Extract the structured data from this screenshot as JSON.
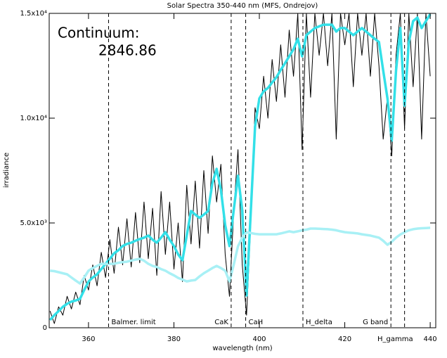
{
  "chart_data": {
    "type": "line",
    "title": "Solar Spectra 350-440 nm (MFS, Ondrejov)",
    "xlabel": "wavelength (nm)",
    "ylabel": "irradiance",
    "annotations": [
      "Continuum:",
      "2846.86"
    ],
    "xlim": [
      350.8,
      441.3
    ],
    "ylim": [
      0,
      15000
    ],
    "xticks": [
      360,
      380,
      400,
      420,
      440
    ],
    "yticks": [
      0,
      {
        "value": 5000,
        "label": "5.0x10³"
      },
      {
        "value": 10000,
        "label": "1.0x10⁴"
      },
      {
        "value": 15000,
        "label": "1.5x10⁴"
      }
    ],
    "markers": [
      {
        "x": 364.7,
        "label": "Balmer. limit"
      },
      {
        "x": 393.4,
        "label": "CaK"
      },
      {
        "x": 396.8,
        "label": "CaH"
      },
      {
        "x": 410.2,
        "label": "H_delta"
      },
      {
        "x": 430.8,
        "label": "G band"
      },
      {
        "x": 434.0,
        "label": "H_gamma"
      }
    ],
    "x": [
      351,
      352,
      353,
      354,
      355,
      356,
      357,
      358,
      359,
      360,
      361,
      362,
      363,
      364,
      365,
      366,
      367,
      368,
      369,
      370,
      371,
      372,
      373,
      374,
      375,
      376,
      377,
      378,
      379,
      380,
      381,
      382,
      383,
      384,
      385,
      386,
      387,
      388,
      389,
      390,
      391,
      392,
      393,
      394,
      395,
      396,
      397,
      398,
      399,
      400,
      401,
      402,
      403,
      404,
      405,
      406,
      407,
      408,
      409,
      410,
      411,
      412,
      413,
      414,
      415,
      416,
      417,
      418,
      419,
      420,
      421,
      422,
      423,
      424,
      425,
      426,
      427,
      428,
      429,
      430,
      431,
      432,
      433,
      434,
      435,
      436,
      437,
      438,
      439,
      440
    ],
    "series": [
      {
        "color": "#000000",
        "width": 1,
        "values": [
          800,
          200,
          1000,
          600,
          1500,
          900,
          1700,
          1100,
          2500,
          1800,
          3000,
          2000,
          3600,
          2400,
          4200,
          2600,
          4800,
          3000,
          5200,
          2900,
          5500,
          3100,
          6000,
          3300,
          5700,
          2500,
          6500,
          3500,
          6000,
          2800,
          5000,
          2200,
          6800,
          4000,
          7000,
          3800,
          7500,
          4500,
          8200,
          6000,
          7800,
          3500,
          1500,
          5500,
          8500,
          3000,
          600,
          5000,
          10500,
          9500,
          12000,
          10000,
          12800,
          10800,
          13500,
          11000,
          14200,
          12000,
          15000,
          8500,
          15000,
          11000,
          15000,
          13000,
          15000,
          12500,
          15000,
          9000,
          15000,
          13500,
          15000,
          11500,
          15000,
          13000,
          15000,
          12000,
          15000,
          12500,
          9000,
          11000,
          8200,
          13000,
          15000,
          9500,
          15000,
          11500,
          15000,
          9000,
          15000,
          12000
        ]
      },
      {
        "color": "#33e0e8",
        "width": 3.5,
        "values": [
          370,
          600,
          800,
          1000,
          1140,
          1250,
          1300,
          1380,
          1800,
          2200,
          2400,
          2550,
          2800,
          3050,
          3300,
          3550,
          3700,
          3900,
          4000,
          4060,
          4150,
          4230,
          4300,
          4400,
          4200,
          4060,
          4300,
          4560,
          4200,
          3900,
          3500,
          3220,
          4400,
          5570,
          5400,
          5240,
          5400,
          5570,
          6900,
          7580,
          6580,
          4900,
          3900,
          5600,
          7250,
          5600,
          1540,
          5600,
          9600,
          10940,
          11280,
          11440,
          11700,
          11950,
          12300,
          12620,
          12950,
          13290,
          13790,
          12950,
          13960,
          14130,
          14300,
          14380,
          14460,
          14460,
          14460,
          14130,
          14300,
          14300,
          14130,
          13960,
          14130,
          14300,
          14130,
          13960,
          13790,
          13630,
          12280,
          10940,
          8930,
          12280,
          14300,
          10600,
          13630,
          14630,
          14800,
          14300,
          14630,
          14960
        ]
      },
      {
        "color": "#a8f0f5",
        "width": 3.5,
        "values": [
          2720,
          2700,
          2650,
          2600,
          2550,
          2400,
          2250,
          2110,
          2400,
          2720,
          2850,
          2950,
          3050,
          3050,
          3050,
          3050,
          3100,
          3130,
          3150,
          3200,
          3250,
          3290,
          3200,
          3050,
          2950,
          2900,
          2800,
          2720,
          2600,
          2500,
          2380,
          2300,
          2210,
          2250,
          2280,
          2450,
          2600,
          2720,
          2850,
          2950,
          2850,
          2720,
          2210,
          3000,
          3890,
          4300,
          4560,
          4520,
          4480,
          4460,
          4460,
          4460,
          4460,
          4460,
          4500,
          4550,
          4600,
          4560,
          4600,
          4650,
          4680,
          4730,
          4730,
          4720,
          4710,
          4700,
          4680,
          4650,
          4600,
          4560,
          4540,
          4520,
          4500,
          4460,
          4430,
          4400,
          4350,
          4300,
          4150,
          3960,
          4100,
          4300,
          4450,
          4560,
          4650,
          4700,
          4730,
          4750,
          4760,
          4770
        ]
      }
    ]
  }
}
